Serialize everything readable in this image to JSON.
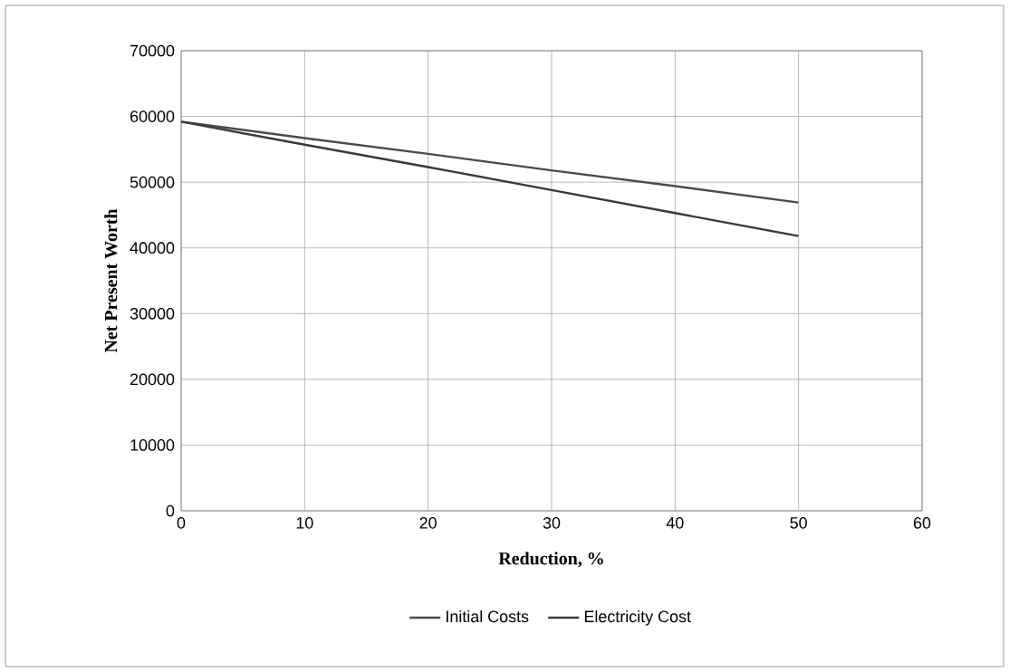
{
  "chart_data": {
    "type": "line",
    "xlabel": "Reduction, %",
    "ylabel": "Net Present Worth",
    "x": [
      0,
      10,
      20,
      30,
      40,
      50
    ],
    "series": [
      {
        "name": "Initial Costs",
        "color": "#4a4a4a",
        "values": [
          59200,
          56700,
          54300,
          51800,
          49400,
          46900
        ]
      },
      {
        "name": "Electricity Cost",
        "color": "#3a3a3a",
        "values": [
          59200,
          55700,
          52300,
          48800,
          45300,
          41800
        ]
      }
    ],
    "xlim": [
      0,
      60
    ],
    "xticks": [
      0,
      10,
      20,
      30,
      40,
      50,
      60
    ],
    "ylim": [
      0,
      70000
    ],
    "yticks": [
      0,
      10000,
      20000,
      30000,
      40000,
      50000,
      60000,
      70000
    ],
    "grid": true,
    "legend": "bottom",
    "marker": "none",
    "line_style": "solid"
  }
}
